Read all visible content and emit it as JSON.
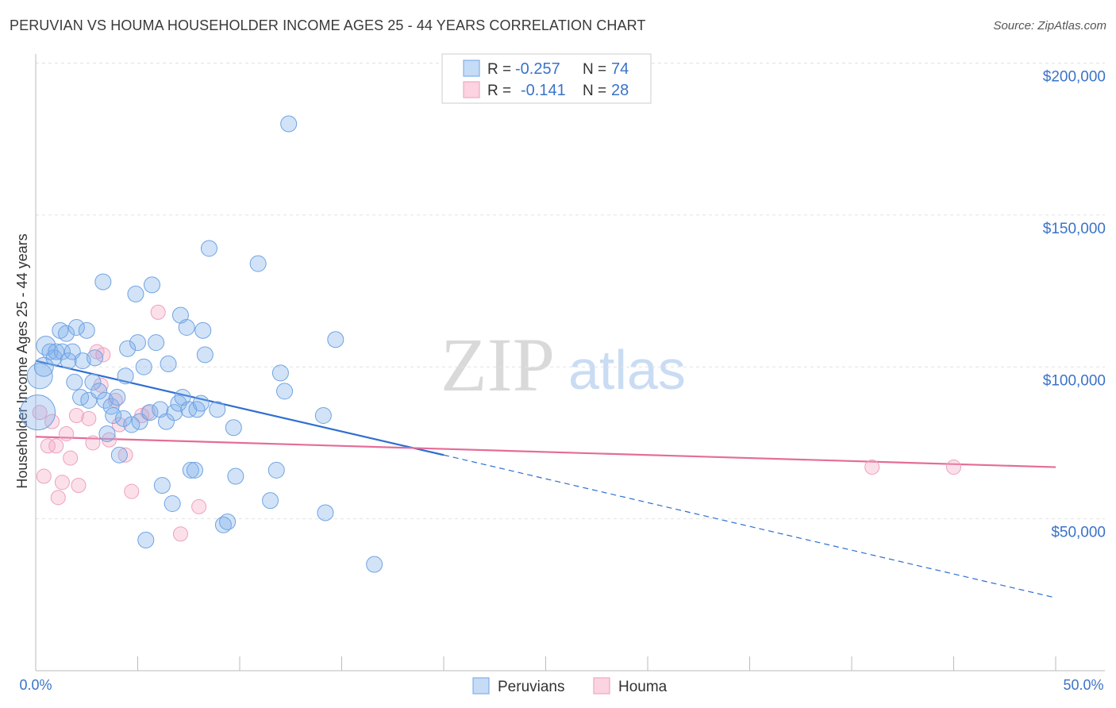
{
  "title": "PERUVIAN VS HOUMA HOUSEHOLDER INCOME AGES 25 - 44 YEARS CORRELATION CHART",
  "source": "Source: ZipAtlas.com",
  "watermark": {
    "zip": "ZIP",
    "atlas": "atlas"
  },
  "legend": {
    "row1": {
      "r_label": "R =",
      "r_value": "-0.257",
      "n_label": "N =",
      "n_value": "74"
    },
    "row2": {
      "r_label": "R =",
      "r_value": "-0.141",
      "n_label": "N =",
      "n_value": "28"
    }
  },
  "chart_data": {
    "type": "scatter",
    "title": "PERUVIAN VS HOUMA HOUSEHOLDER INCOME AGES 25 - 44 YEARS CORRELATION CHART",
    "xlabel": "",
    "ylabel": "Householder Income Ages 25 - 44 years",
    "xlim": [
      0,
      50
    ],
    "ylim": [
      0,
      210000
    ],
    "x_tick_labels": [
      "0.0%",
      "50.0%"
    ],
    "y_ticks": [
      50000,
      100000,
      150000,
      200000
    ],
    "y_tick_labels": [
      "$50,000",
      "$100,000",
      "$150,000",
      "$200,000"
    ],
    "grid": true,
    "legend_position": "top-center",
    "series": [
      {
        "name": "Peruvians",
        "color": "#7fb0ea",
        "line_color": "#2f6fd0",
        "r": -0.257,
        "n": 74,
        "trend": {
          "x_start": 0,
          "y_start": 102000,
          "x_solid_end": 20,
          "y_solid_end": 71000,
          "x_end": 50,
          "y_end": 24000
        },
        "points": [
          [
            0.1,
            85000,
            22
          ],
          [
            0.2,
            97000,
            16
          ],
          [
            0.4,
            100000,
            12
          ],
          [
            0.5,
            107000,
            12
          ],
          [
            0.7,
            105000,
            10
          ],
          [
            0.9,
            103000,
            10
          ],
          [
            1.0,
            105000,
            10
          ],
          [
            1.2,
            112000,
            10
          ],
          [
            1.3,
            105000,
            10
          ],
          [
            1.5,
            111000,
            10
          ],
          [
            1.6,
            102000,
            10
          ],
          [
            1.8,
            105000,
            10
          ],
          [
            1.9,
            95000,
            10
          ],
          [
            2.0,
            113000,
            10
          ],
          [
            2.2,
            90000,
            10
          ],
          [
            2.3,
            102000,
            10
          ],
          [
            2.5,
            112000,
            10
          ],
          [
            2.6,
            89000,
            10
          ],
          [
            2.8,
            95000,
            10
          ],
          [
            2.9,
            103000,
            10
          ],
          [
            3.1,
            92000,
            10
          ],
          [
            3.3,
            128000,
            10
          ],
          [
            3.4,
            89000,
            10
          ],
          [
            3.5,
            78000,
            10
          ],
          [
            3.7,
            87000,
            10
          ],
          [
            3.8,
            84000,
            10
          ],
          [
            4.0,
            90000,
            10
          ],
          [
            4.1,
            71000,
            10
          ],
          [
            4.3,
            83000,
            10
          ],
          [
            4.4,
            97000,
            10
          ],
          [
            4.5,
            106000,
            10
          ],
          [
            4.7,
            81000,
            10
          ],
          [
            4.9,
            124000,
            10
          ],
          [
            5.0,
            108000,
            10
          ],
          [
            5.1,
            82000,
            10
          ],
          [
            5.3,
            100000,
            10
          ],
          [
            5.4,
            43000,
            10
          ],
          [
            5.6,
            85000,
            10
          ],
          [
            5.7,
            127000,
            10
          ],
          [
            5.9,
            108000,
            10
          ],
          [
            6.1,
            86000,
            10
          ],
          [
            6.2,
            61000,
            10
          ],
          [
            6.4,
            82000,
            10
          ],
          [
            6.5,
            101000,
            10
          ],
          [
            6.7,
            55000,
            10
          ],
          [
            6.8,
            85000,
            10
          ],
          [
            7.0,
            88000,
            10
          ],
          [
            7.1,
            117000,
            10
          ],
          [
            7.2,
            90000,
            10
          ],
          [
            7.4,
            113000,
            10
          ],
          [
            7.5,
            86000,
            10
          ],
          [
            7.6,
            66000,
            10
          ],
          [
            7.8,
            66000,
            10
          ],
          [
            7.9,
            86000,
            10
          ],
          [
            8.1,
            88000,
            10
          ],
          [
            8.2,
            112000,
            10
          ],
          [
            8.3,
            104000,
            10
          ],
          [
            8.5,
            139000,
            10
          ],
          [
            8.9,
            86000,
            10
          ],
          [
            9.2,
            48000,
            10
          ],
          [
            9.4,
            49000,
            10
          ],
          [
            9.7,
            80000,
            10
          ],
          [
            9.8,
            64000,
            10
          ],
          [
            10.9,
            134000,
            10
          ],
          [
            11.5,
            56000,
            10
          ],
          [
            11.8,
            66000,
            10
          ],
          [
            12.0,
            98000,
            10
          ],
          [
            12.2,
            92000,
            10
          ],
          [
            12.4,
            180000,
            10
          ],
          [
            14.1,
            84000,
            10
          ],
          [
            14.2,
            52000,
            10
          ],
          [
            14.7,
            109000,
            10
          ],
          [
            16.6,
            35000,
            10
          ]
        ]
      },
      {
        "name": "Houma",
        "color": "#f4a7c2",
        "line_color": "#e46d98",
        "r": -0.141,
        "n": 28,
        "trend": {
          "x_start": 0,
          "y_start": 77000,
          "x_end": 50,
          "y_end": 67000
        },
        "points": [
          [
            0.2,
            85000
          ],
          [
            0.4,
            64000
          ],
          [
            0.6,
            74000
          ],
          [
            0.8,
            82000
          ],
          [
            1.0,
            74000
          ],
          [
            1.1,
            57000
          ],
          [
            1.3,
            62000
          ],
          [
            1.5,
            78000
          ],
          [
            1.7,
            70000
          ],
          [
            2.0,
            84000
          ],
          [
            2.1,
            61000
          ],
          [
            2.6,
            83000
          ],
          [
            2.8,
            75000
          ],
          [
            3.0,
            105000
          ],
          [
            3.2,
            94000
          ],
          [
            3.3,
            104000
          ],
          [
            3.6,
            76000
          ],
          [
            3.9,
            89000
          ],
          [
            4.1,
            81000
          ],
          [
            4.4,
            71000
          ],
          [
            4.7,
            59000
          ],
          [
            5.2,
            84000
          ],
          [
            5.5,
            85000
          ],
          [
            6.0,
            118000
          ],
          [
            7.1,
            45000
          ],
          [
            8.0,
            54000
          ],
          [
            41.0,
            67000
          ],
          [
            45.0,
            67000
          ]
        ]
      }
    ]
  }
}
